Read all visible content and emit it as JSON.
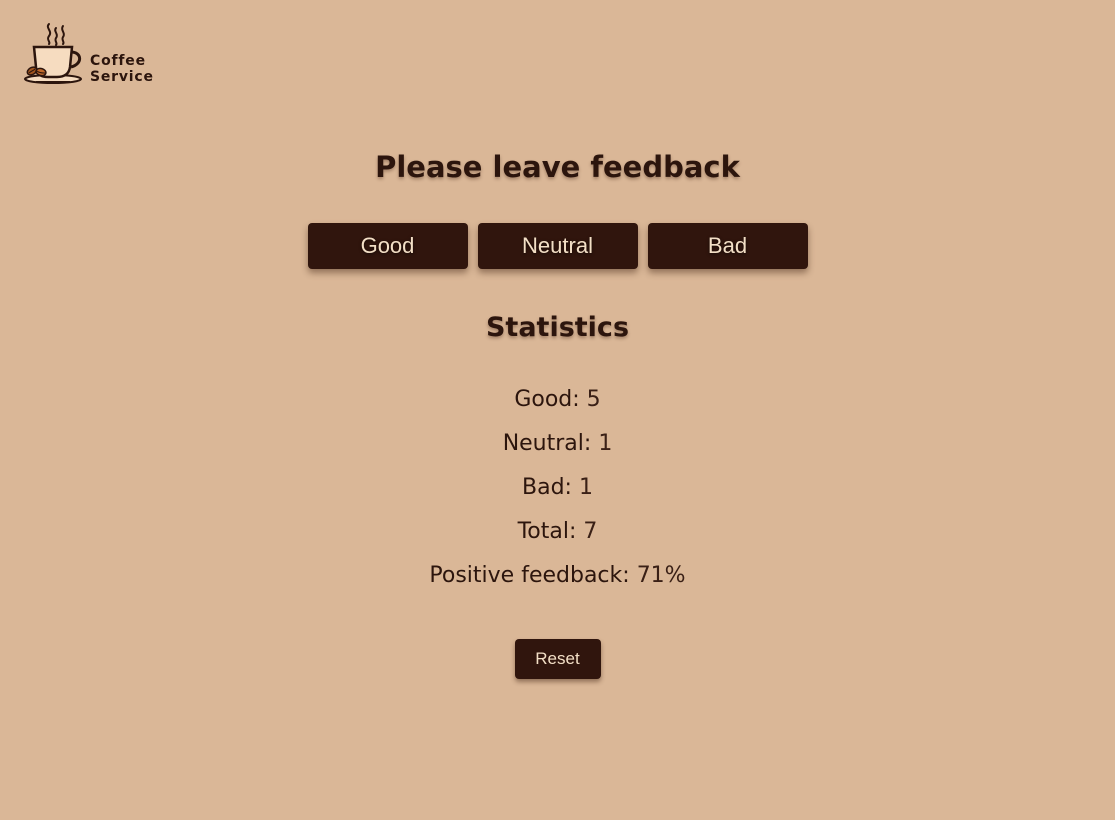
{
  "logo": {
    "line1": "Coffee",
    "line2": "Service",
    "icon": "coffee-cup-icon"
  },
  "feedback": {
    "title": "Please leave feedback",
    "buttons": [
      "Good",
      "Neutral",
      "Bad"
    ]
  },
  "statistics": {
    "title": "Statistics",
    "items": [
      {
        "label": "Good:",
        "value": "5"
      },
      {
        "label": "Neutral:",
        "value": "1"
      },
      {
        "label": "Bad:",
        "value": "1"
      },
      {
        "label": "Total:",
        "value": "7"
      },
      {
        "label": "Positive feedback:",
        "value": "71%"
      }
    ]
  },
  "reset_label": "Reset",
  "colors": {
    "background": "#dab797",
    "button": "#30150d",
    "button_text": "#f3dfc6",
    "text": "#2c150d"
  }
}
